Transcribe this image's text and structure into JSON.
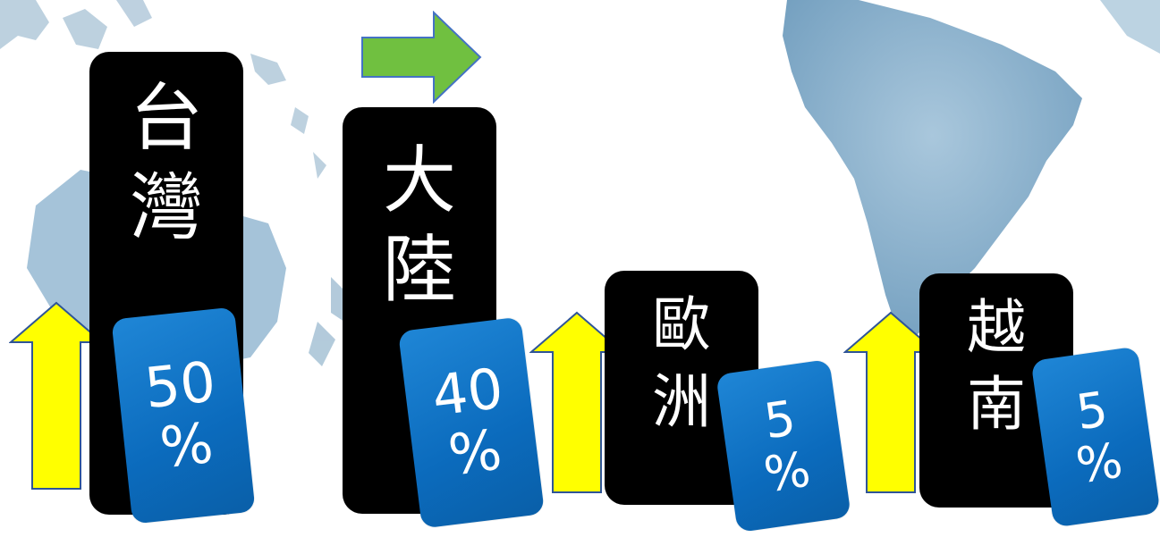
{
  "colors": {
    "map_land": "#7da9c7",
    "box_bg": "#000000",
    "card_blue": "#0b6bbd",
    "up_arrow_fill": "#ffff00",
    "up_arrow_stroke": "#2f5597",
    "right_arrow_fill": "#70c040",
    "right_arrow_stroke": "#4472c4"
  },
  "icons": {
    "up_arrow": "up-arrow-icon",
    "right_arrow": "right-arrow-icon"
  },
  "regions": [
    {
      "name_chars": [
        "台",
        "灣"
      ],
      "percent_value": "50",
      "percent_symbol": "%"
    },
    {
      "name_chars": [
        "大",
        "陸"
      ],
      "percent_value": "40",
      "percent_symbol": "%"
    },
    {
      "name_chars": [
        "歐",
        "洲"
      ],
      "percent_value": "5",
      "percent_symbol": "%"
    },
    {
      "name_chars": [
        "越",
        "南"
      ],
      "percent_value": "5",
      "percent_symbol": "%"
    }
  ]
}
